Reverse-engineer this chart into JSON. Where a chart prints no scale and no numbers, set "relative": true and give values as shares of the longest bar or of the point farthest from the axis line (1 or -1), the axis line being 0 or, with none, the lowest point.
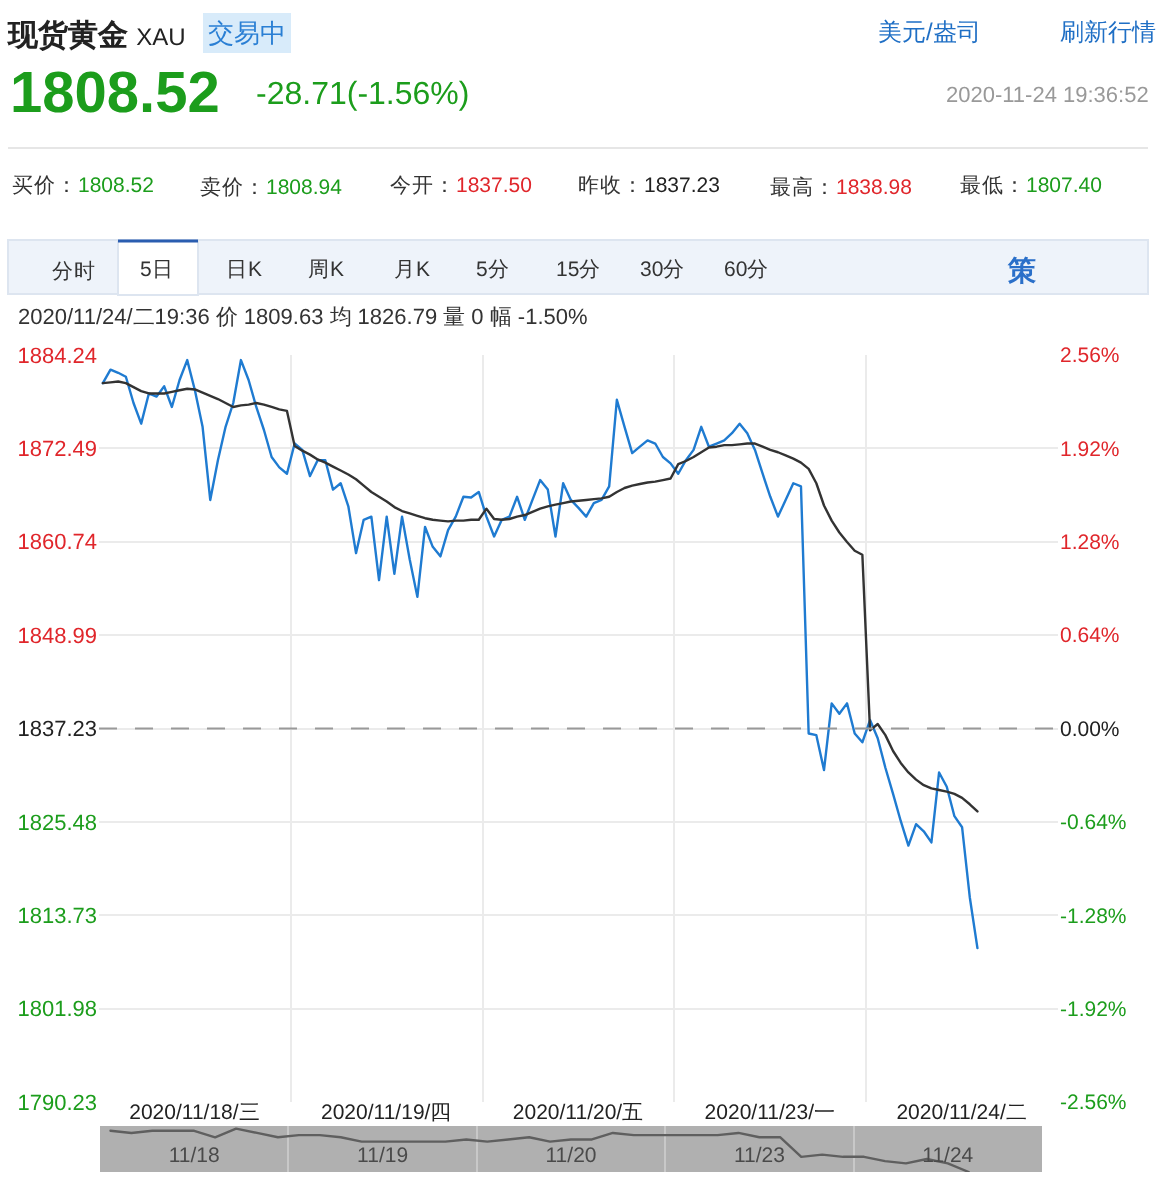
{
  "chart_data": [
    {
      "type": "line",
      "title": "现货黄金 XAU",
      "annotations": [
        "交易中",
        "美元/盎司",
        "刷新行情",
        "1808.52",
        "-28.71(-1.56%)",
        "2020-11-24 19:36:52",
        "买价：1808.52",
        "卖价：1808.94",
        "今开：1837.50",
        "昨收：1837.23",
        "最高：1838.98",
        "最低：1807.40",
        "分时",
        "5日",
        "日K",
        "周K",
        "月K",
        "5分",
        "15分",
        "30分",
        "60分",
        "策",
        "2020/11/24/二19:36 价 1809.63 均 1826.79 量 0 幅 -1.50%"
      ],
      "categories": [
        null,
        null,
        null,
        null,
        null,
        null,
        null,
        null,
        null,
        null,
        null,
        null,
        "2020/11/18/三",
        null,
        null,
        null,
        null,
        null,
        null,
        null,
        null,
        null,
        null,
        null,
        null,
        null,
        null,
        null,
        null,
        null,
        null,
        null,
        null,
        null,
        null,
        null,
        null,
        "2020/11/19/四",
        null,
        null,
        null,
        null,
        null,
        null,
        null,
        null,
        null,
        null,
        null,
        null,
        null,
        null,
        null,
        null,
        null,
        null,
        null,
        null,
        null,
        null,
        null,
        null,
        "2020/11/20/五",
        null,
        null,
        null,
        null,
        null,
        null,
        null,
        null,
        null,
        null,
        null,
        null,
        null,
        null,
        null,
        null,
        null,
        null,
        null,
        null,
        null,
        null,
        null,
        null,
        "2020/11/23/一",
        null,
        null,
        null,
        null,
        null,
        null,
        null,
        null,
        null,
        null,
        null,
        null,
        null,
        null,
        null,
        null,
        null,
        null,
        null,
        null,
        null,
        null,
        null,
        null,
        "2020/11/24/二",
        null,
        null,
        null,
        null,
        null,
        null,
        null,
        null,
        null,
        null,
        null,
        null
      ],
      "series": [
        {
          "color": "#1f7bd1",
          "values": [
            1880.7,
            1882.4,
            1882.0,
            1881.5,
            1878.2,
            1875.6,
            1879.4,
            1879.0,
            1880.3,
            1877.7,
            1881.1,
            1883.6,
            1879.8,
            1875.2,
            1866.0,
            1871.0,
            1875.2,
            1878.2,
            1883.6,
            1881.1,
            1877.7,
            1874.8,
            1871.4,
            1870.1,
            1869.3,
            1873.1,
            1872.3,
            1869.0,
            1871.0,
            1871.0,
            1867.3,
            1868.1,
            1865.2,
            1859.3,
            1863.5,
            1863.9,
            1855.9,
            1863.9,
            1856.7,
            1863.9,
            1858.5,
            1853.8,
            1862.6,
            1860.1,
            1858.9,
            1862.2,
            1863.9,
            1866.4,
            1866.3,
            1867.0,
            1863.9,
            1861.4,
            1863.5,
            1863.9,
            1866.4,
            1863.5,
            1866.0,
            1868.5,
            1867.3,
            1861.4,
            1868.1,
            1866.0,
            1865.0,
            1863.9,
            1865.6,
            1866.0,
            1867.7,
            1878.6,
            1875.2,
            1871.9,
            1872.7,
            1873.5,
            1873.1,
            1871.4,
            1870.6,
            1869.3,
            1871.0,
            1872.3,
            1875.2,
            1872.7,
            1873.1,
            1873.5,
            1874.4,
            1875.6,
            1874.4,
            1872.3,
            1869.3,
            1866.4,
            1863.9,
            1866.0,
            1868.1,
            1867.7,
            1836.6,
            1836.4,
            1832.0,
            1840.4,
            1839.1,
            1840.4,
            1836.6,
            1835.5,
            1838.3,
            1836.0,
            1832.3,
            1829.0,
            1825.6,
            1822.5,
            1825.2,
            1824.3,
            1822.9,
            1831.7,
            1829.9,
            1826.2,
            1824.8,
            1816.0,
            1809.6,
            null,
            null,
            null,
            null,
            null,
            null,
            null,
            null,
            null,
            null
          ]
        },
        {
          "color": "#333333",
          "values": [
            1880.7,
            1880.8,
            1880.9,
            1880.7,
            1880.2,
            1879.7,
            1879.4,
            1879.4,
            1879.4,
            1879.6,
            1879.8,
            1880.0,
            1879.9,
            1879.5,
            1879.1,
            1878.7,
            1878.2,
            1877.7,
            1877.9,
            1878.0,
            1878.2,
            1878.0,
            1877.7,
            1877.4,
            1877.2,
            1872.8,
            1872.2,
            1871.7,
            1871.1,
            1870.7,
            1870.2,
            1869.7,
            1869.2,
            1868.6,
            1867.8,
            1867.0,
            1866.4,
            1865.8,
            1865.1,
            1864.6,
            1864.3,
            1864.0,
            1863.7,
            1863.5,
            1863.4,
            1863.3,
            1863.4,
            1863.4,
            1863.5,
            1863.5,
            1864.9,
            1863.6,
            1863.5,
            1863.6,
            1863.9,
            1864.1,
            1864.5,
            1864.9,
            1865.2,
            1865.4,
            1865.6,
            1865.8,
            1865.9,
            1866.0,
            1866.1,
            1866.2,
            1866.4,
            1867.0,
            1867.5,
            1867.8,
            1868.0,
            1868.2,
            1868.3,
            1868.5,
            1868.7,
            1870.5,
            1870.9,
            1871.4,
            1872.0,
            1872.6,
            1872.7,
            1872.9,
            1872.9,
            1873.0,
            1873.1,
            1873.1,
            1872.7,
            1872.3,
            1872.0,
            1871.6,
            1871.2,
            1870.7,
            1869.9,
            1868.1,
            1865.3,
            1863.4,
            1861.9,
            1860.7,
            1859.6,
            1859.1,
            1837.0,
            1837.8,
            1836.4,
            1834.4,
            1832.9,
            1831.7,
            1830.8,
            1830.1,
            1829.7,
            1829.5,
            1829.3,
            1829.0,
            1828.5,
            1827.7,
            1826.8,
            null,
            null,
            null,
            null,
            null,
            null,
            null,
            null,
            null,
            null
          ]
        }
      ],
      "ylim": [
        1790.23,
        1884.24
      ],
      "yticks": [
        1790.23,
        1801.98,
        1813.73,
        1825.48,
        1837.23,
        1848.99,
        1860.74,
        1872.49,
        1884.24
      ],
      "y2lim": [
        -2.56,
        2.56
      ],
      "y2ticks": [
        {
          "value": -2.56,
          "label": "-2.56%"
        },
        {
          "value": -1.92,
          "label": "-1.92%"
        },
        {
          "value": -1.28,
          "label": "-1.28%"
        },
        {
          "value": -0.64,
          "label": "-0.64%"
        },
        {
          "value": 0,
          "label": "0.00%"
        },
        {
          "value": 0.64,
          "label": "0.64%"
        },
        {
          "value": 1.28,
          "label": "1.28%"
        },
        {
          "value": 1.92,
          "label": "1.92%"
        },
        {
          "value": 2.56,
          "label": "2.56%"
        }
      ],
      "ref_lines": [
        {
          "axis": "y",
          "value": 1837.23,
          "color": "#999999",
          "line_style": "dashed"
        }
      ],
      "grid": true
    },
    {
      "type": "line",
      "relative": true,
      "color": "#5f5f5f",
      "categories": [
        null,
        null,
        null,
        null,
        "11/18",
        null,
        null,
        null,
        null,
        null,
        null,
        null,
        null,
        "11/19",
        null,
        null,
        null,
        null,
        null,
        null,
        null,
        null,
        "11/20",
        null,
        null,
        null,
        null,
        null,
        null,
        null,
        null,
        "11/23",
        null,
        null,
        null,
        null,
        null,
        null,
        null,
        null,
        "11/24",
        null,
        null,
        null,
        null
      ],
      "values": [
        0.95,
        0.9,
        0.95,
        0.95,
        0.95,
        0.8,
        1,
        0.9,
        0.8,
        0.85,
        0.85,
        0.8,
        0.7,
        0.7,
        0.7,
        0.7,
        0.7,
        0.75,
        0.7,
        0.75,
        0.8,
        0.7,
        0.75,
        0.75,
        0.9,
        0.85,
        0.85,
        0.85,
        0.85,
        0.85,
        0.9,
        0.8,
        0.8,
        0.35,
        0.4,
        0.35,
        0.35,
        0.25,
        0.2,
        0.3,
        0.2,
        0,
        null,
        null,
        null
      ],
      "grid": "x"
    }
  ]
}
